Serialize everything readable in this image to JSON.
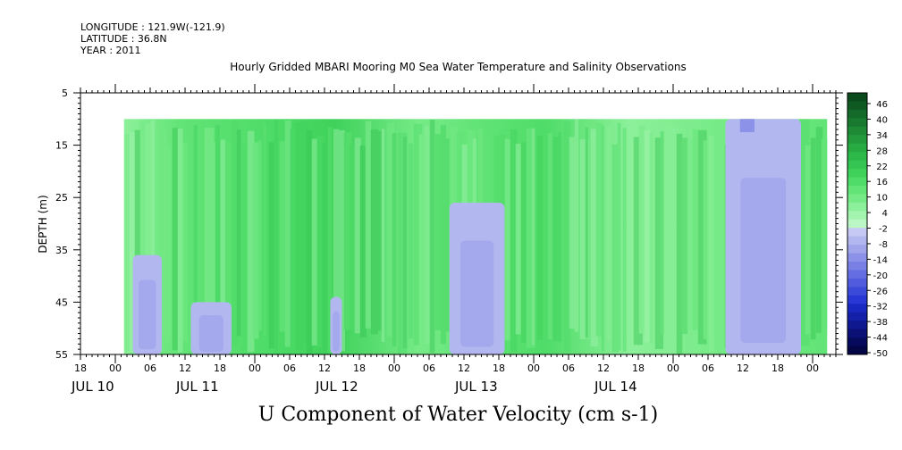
{
  "header": {
    "longitude": "LONGITUDE : 121.9W(-121.9)",
    "latitude": "LATITUDE : 36.8N",
    "year": "YEAR : 2011",
    "title": "Hourly Gridded MBARI Mooring M0 Sea Water Temperature and Salinity Observations"
  },
  "chart_data": {
    "type": "heatmap",
    "title": "Hourly Gridded MBARI Mooring M0 Sea Water Temperature and Salinity Observations",
    "xlabel": "U Component of Water Velocity (cm s-1)",
    "ylabel": "DEPTH (m)",
    "xlim_hours": [
      -6,
      124
    ],
    "ylim": [
      55,
      5
    ],
    "y_ticks": [
      5,
      15,
      25,
      35,
      45,
      55
    ],
    "x_tick_labels": [
      {
        "h": -6,
        "label": "18"
      },
      {
        "h": 0,
        "label": "00"
      },
      {
        "h": 6,
        "label": "06"
      },
      {
        "h": 12,
        "label": "12"
      },
      {
        "h": 18,
        "label": "18"
      },
      {
        "h": 24,
        "label": "00"
      },
      {
        "h": 30,
        "label": "06"
      },
      {
        "h": 36,
        "label": "12"
      },
      {
        "h": 42,
        "label": "18"
      },
      {
        "h": 48,
        "label": "00"
      },
      {
        "h": 54,
        "label": "06"
      },
      {
        "h": 60,
        "label": "12"
      },
      {
        "h": 66,
        "label": "18"
      },
      {
        "h": 72,
        "label": "00"
      },
      {
        "h": 78,
        "label": "06"
      },
      {
        "h": 84,
        "label": "12"
      },
      {
        "h": 90,
        "label": "18"
      },
      {
        "h": 96,
        "label": "00"
      },
      {
        "h": 102,
        "label": "06"
      },
      {
        "h": 108,
        "label": "12"
      },
      {
        "h": 114,
        "label": "18"
      },
      {
        "h": 120,
        "label": "00"
      }
    ],
    "day_labels": [
      {
        "h": -6,
        "label": "JUL 10"
      },
      {
        "h": 12,
        "label": "JUL 11"
      },
      {
        "h": 36,
        "label": "JUL 12"
      },
      {
        "h": 60,
        "label": "JUL 13"
      },
      {
        "h": 84,
        "label": "JUL 14"
      }
    ],
    "data_start_hour": 1.5,
    "data_end_hour": 122.5,
    "data_depth_range": [
      10,
      55
    ],
    "negative_regions": [
      {
        "h0": 3,
        "h1": 8,
        "d_top": 36,
        "d_bot": 55
      },
      {
        "h0": 13,
        "h1": 20,
        "d_top": 45,
        "d_bot": 55
      },
      {
        "h0": 37,
        "h1": 39,
        "d_top": 44,
        "d_bot": 55
      },
      {
        "h0": 57.5,
        "h1": 67,
        "d_top": 26,
        "d_bot": 55
      },
      {
        "h0": 105,
        "h1": 118,
        "d_top": 10,
        "d_bot": 55
      }
    ],
    "colorbar_levels": [
      46,
      40,
      34,
      28,
      22,
      16,
      10,
      4,
      -2,
      -8,
      -14,
      -20,
      -26,
      -32,
      -38,
      -44,
      -50
    ],
    "colorbar_colors_top_to_bottom": [
      "#0b4a1c",
      "#0f5a22",
      "#146a29",
      "#197a2f",
      "#1e8a36",
      "#239a3c",
      "#28aa43",
      "#2db84a",
      "#35c552",
      "#3fd25b",
      "#4fdc68",
      "#62e476",
      "#76ea87",
      "#8cf09a",
      "#a2f4ae",
      "#bbf7c4",
      "#c6c9f3",
      "#b3b7ef",
      "#a0a5ec",
      "#8c92e8",
      "#7880e5",
      "#646ee1",
      "#505cdd",
      "#3c4ad9",
      "#2838d5",
      "#1a28c2",
      "#1420a8",
      "#0f188f",
      "#0a1075",
      "#060a5c",
      "#030546"
    ]
  }
}
